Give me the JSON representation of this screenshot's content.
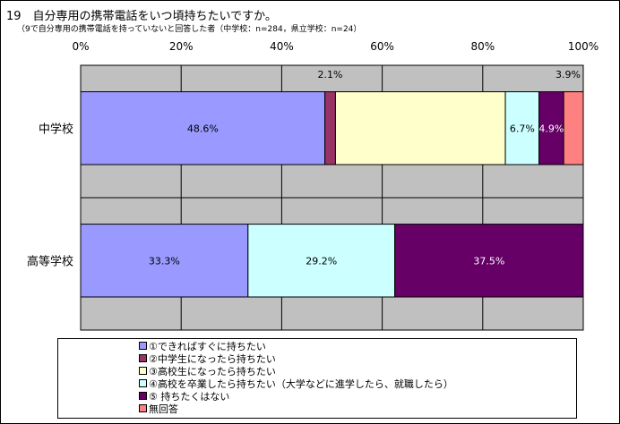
{
  "title": "19　自分専用の携帯電話をいつ頃持ちたいですか。",
  "subtitle": "（9で自分専用の携帯電話を持っていないと回答した者（中学校：n=284，県立学校：n=24）",
  "colors": {
    "plot_bg": "#c0c0c0",
    "grid": "#000000",
    "label_light": "#ffffff",
    "label_dark": "#000000"
  },
  "chart_data": {
    "type": "bar",
    "orientation": "horizontal",
    "stacked": "percent",
    "xlim": [
      0,
      100
    ],
    "xticks": [
      "0%",
      "20%",
      "40%",
      "60%",
      "80%",
      "100%"
    ],
    "categories": [
      "中学校",
      "高等学校"
    ],
    "series": [
      {
        "name": "①できればすぐに持ちたい",
        "color": "#9999ff",
        "values": [
          48.6,
          33.3
        ],
        "labels": [
          "48.6%",
          "33.3%"
        ]
      },
      {
        "name": "②中学生になったら持ちたい",
        "color": "#993366",
        "values": [
          2.1,
          0.0
        ],
        "labels": [
          "2.1%",
          ""
        ]
      },
      {
        "name": "③高校生になったら持ちたい",
        "color": "#ffffcc",
        "values": [
          33.8,
          0.0
        ],
        "labels": [
          "",
          ""
        ]
      },
      {
        "name": "④高校を卒業したら持ちたい（大学などに進学したら、就職したら）",
        "color": "#ccffff",
        "values": [
          6.7,
          29.2
        ],
        "labels": [
          "6.7%",
          "29.2%"
        ]
      },
      {
        "name": "⑤ 持ちたくはない",
        "color": "#660066",
        "values": [
          4.9,
          37.5
        ],
        "labels": [
          "4.9%",
          "37.5%"
        ]
      },
      {
        "name": "無回答",
        "color": "#ff8080",
        "values": [
          3.9,
          0.0
        ],
        "labels": [
          "3.9%",
          ""
        ]
      }
    ],
    "grid": true,
    "legend_position": "bottom"
  }
}
